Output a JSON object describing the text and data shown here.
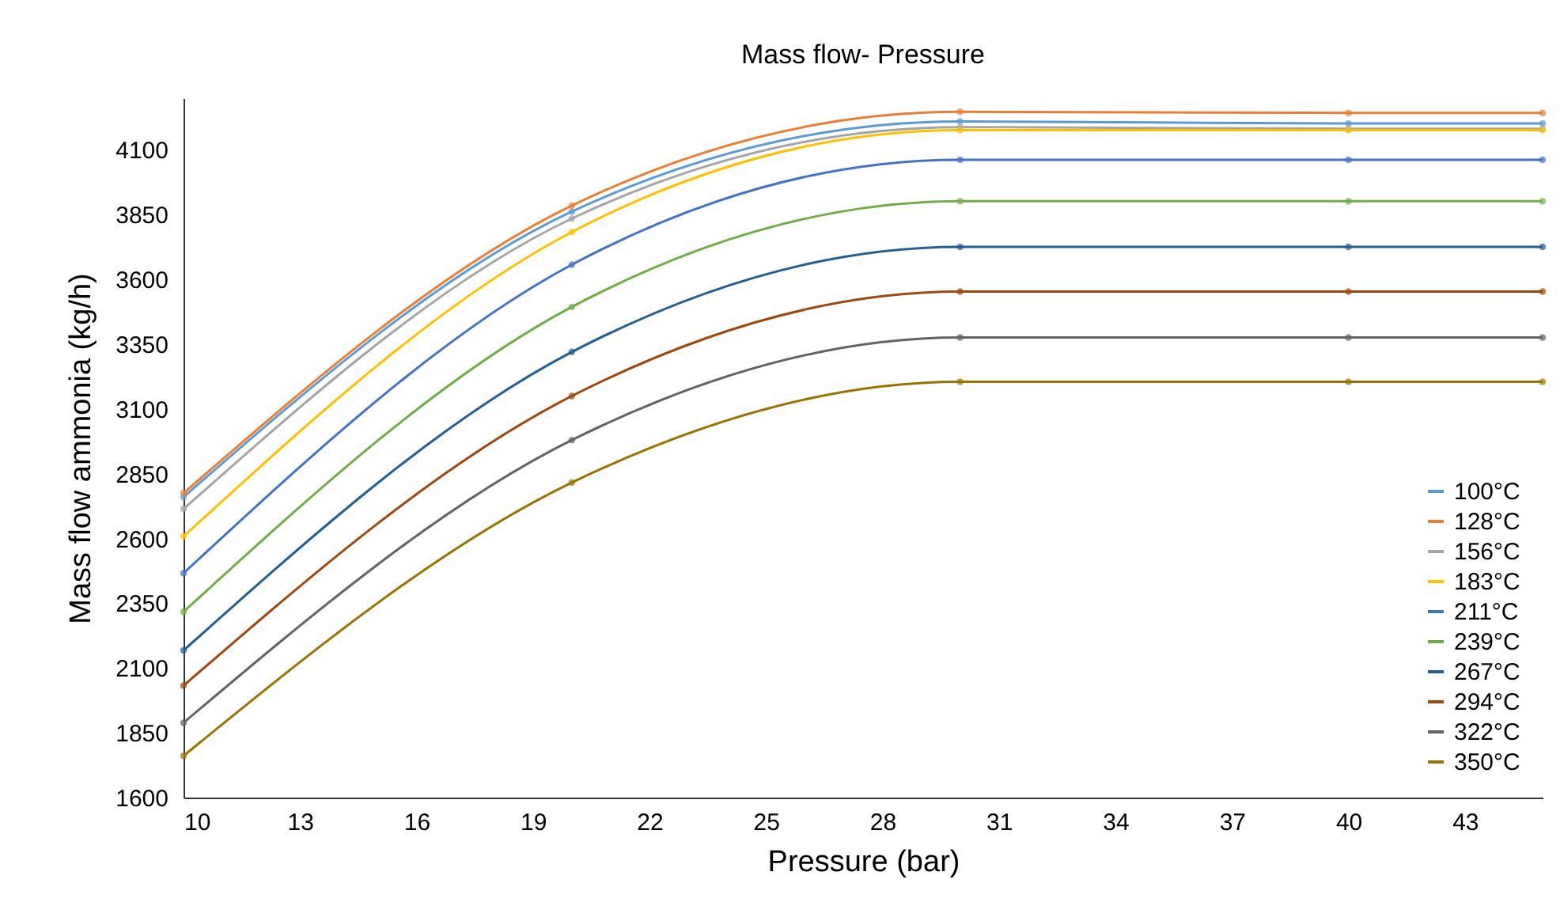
{
  "chart_data": {
    "type": "line",
    "title": "Mass flow- Pressure",
    "xlabel": "Pressure (bar)",
    "ylabel": "Mass flow ammonia (kg/h)",
    "x": [
      10,
      20,
      30,
      40,
      45
    ],
    "xlim": [
      10,
      45
    ],
    "xticks": [
      10,
      13,
      16,
      19,
      22,
      25,
      28,
      31,
      34,
      37,
      40,
      43
    ],
    "ylim": [
      1600,
      4300
    ],
    "yticks": [
      1600,
      1850,
      2100,
      2350,
      2600,
      2850,
      3100,
      3350,
      3600,
      3850,
      4100
    ],
    "grid": false,
    "legend": "bottom right",
    "marker": "circle",
    "line_style": "solid",
    "series": [
      {
        "name": "100°C",
        "color": "#5b9bd5",
        "values": [
          2760,
          3862,
          4210,
          4202,
          4202
        ]
      },
      {
        "name": "128°C",
        "color": "#ed7d31",
        "values": [
          2775,
          3885,
          4247,
          4243,
          4243
        ]
      },
      {
        "name": "156°C",
        "color": "#a5a5a5",
        "values": [
          2714,
          3835,
          4188,
          4182,
          4182
        ]
      },
      {
        "name": "183°C",
        "color": "#ffc000",
        "values": [
          2608,
          3783,
          4176,
          4176,
          4176
        ]
      },
      {
        "name": "211°C",
        "color": "#4472c4",
        "values": [
          2466,
          3657,
          4062,
          4062,
          4062
        ]
      },
      {
        "name": "239°C",
        "color": "#70ad47",
        "values": [
          2317,
          3494,
          3902,
          3902,
          3902
        ]
      },
      {
        "name": "267°C",
        "color": "#255e91",
        "values": [
          2168,
          3320,
          3726,
          3726,
          3726
        ]
      },
      {
        "name": "294°C",
        "color": "#9e480e",
        "values": [
          2032,
          3150,
          3553,
          3553,
          3553
        ]
      },
      {
        "name": "322°C",
        "color": "#636363",
        "values": [
          1889,
          2980,
          3376,
          3376,
          3376
        ]
      },
      {
        "name": "350°C",
        "color": "#997300",
        "values": [
          1761,
          2816,
          3205,
          3205,
          3205
        ]
      }
    ]
  }
}
